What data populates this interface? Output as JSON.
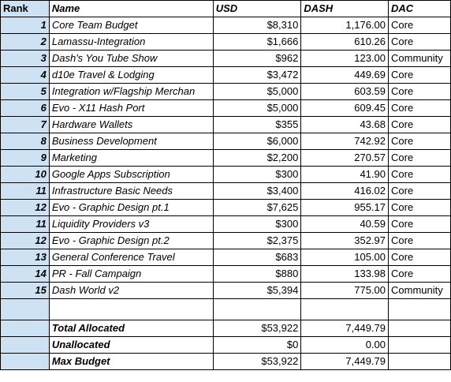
{
  "headers": {
    "rank": "Rank",
    "name": "Name",
    "usd": "USD",
    "dash": "DASH",
    "dac": "DAC"
  },
  "rows": [
    {
      "rank": "1",
      "name": "Core Team Budget",
      "usd": "$8,310",
      "dash": "1,176.00",
      "dac": "Core"
    },
    {
      "rank": "2",
      "name": "Lamassu-Integration",
      "usd": "$1,666",
      "dash": "610.26",
      "dac": "Core"
    },
    {
      "rank": "3",
      "name": "Dash's You Tube Show",
      "usd": "$962",
      "dash": "123.00",
      "dac": "Community"
    },
    {
      "rank": "4",
      "name": "d10e Travel & Lodging",
      "usd": "$3,472",
      "dash": "449.69",
      "dac": "Core"
    },
    {
      "rank": "5",
      "name": "Integration w/Flagship Merchan",
      "usd": "$5,000",
      "dash": "603.59",
      "dac": "Core"
    },
    {
      "rank": "6",
      "name": "Evo - X11 Hash Port",
      "usd": "$5,000",
      "dash": "609.45",
      "dac": "Core"
    },
    {
      "rank": "7",
      "name": "Hardware Wallets",
      "usd": "$355",
      "dash": "43.68",
      "dac": "Core"
    },
    {
      "rank": "8",
      "name": "Business Development",
      "usd": "$6,000",
      "dash": "742.92",
      "dac": "Core"
    },
    {
      "rank": "9",
      "name": "Marketing",
      "usd": "$2,200",
      "dash": "270.57",
      "dac": "Core"
    },
    {
      "rank": "10",
      "name": "Google Apps Subscription",
      "usd": "$300",
      "dash": "41.90",
      "dac": "Core"
    },
    {
      "rank": "11",
      "name": "Infrastructure Basic Needs",
      "usd": "$3,400",
      "dash": "416.02",
      "dac": "Core"
    },
    {
      "rank": "12",
      "name": "Evo - Graphic Design pt.1",
      "usd": "$7,625",
      "dash": "955.17",
      "dac": "Core"
    },
    {
      "rank": "11",
      "name": "Liquidity Providers v3",
      "usd": "$300",
      "dash": "40.59",
      "dac": "Core"
    },
    {
      "rank": "12",
      "name": "Evo - Graphic Design pt.2",
      "usd": "$2,375",
      "dash": "352.97",
      "dac": "Core"
    },
    {
      "rank": "13",
      "name": "General Conference Travel",
      "usd": "$683",
      "dash": "105.00",
      "dac": "Core"
    },
    {
      "rank": "14",
      "name": "PR - Fall Campaign",
      "usd": "$880",
      "dash": "133.98",
      "dac": "Core"
    },
    {
      "rank": "15",
      "name": "Dash World v2",
      "usd": "$5,394",
      "dash": "775.00",
      "dac": "Community"
    }
  ],
  "totals": [
    {
      "name": "Total Allocated",
      "usd": "$53,922",
      "dash": "7,449.79"
    },
    {
      "name": "Unallocated",
      "usd": "$0",
      "dash": "0.00"
    },
    {
      "name": "Max Budget",
      "usd": "$53,922",
      "dash": "7,449.79"
    }
  ],
  "colors": {
    "rank_column_bg": "#cfe2f3",
    "grid_line": "#000000"
  }
}
